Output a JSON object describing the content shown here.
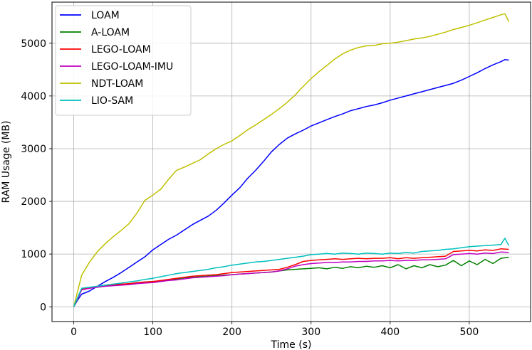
{
  "chart_data": {
    "type": "line",
    "title": "",
    "xlabel": "Time (s)",
    "ylabel": "RAM Usage (MB)",
    "xlim": [
      -27.5,
      577.5
    ],
    "ylim": [
      -280,
      5780
    ],
    "xticks": [
      0,
      100,
      200,
      300,
      400,
      500
    ],
    "yticks": [
      0,
      1000,
      2000,
      3000,
      4000,
      5000
    ],
    "grid": true,
    "legend_position": "top-left",
    "series": [
      {
        "name": "LOAM",
        "color": "#0000ff",
        "x": [
          0,
          5,
          10,
          20,
          30,
          40,
          50,
          60,
          70,
          80,
          90,
          100,
          110,
          120,
          130,
          140,
          150,
          160,
          170,
          180,
          190,
          200,
          210,
          220,
          230,
          240,
          250,
          260,
          270,
          280,
          290,
          300,
          310,
          320,
          330,
          340,
          350,
          360,
          370,
          380,
          390,
          400,
          410,
          420,
          430,
          440,
          450,
          460,
          470,
          480,
          490,
          500,
          510,
          520,
          530,
          540,
          545,
          550
        ],
        "y": [
          0,
          130,
          240,
          300,
          390,
          480,
          560,
          650,
          750,
          850,
          950,
          1080,
          1180,
          1280,
          1360,
          1460,
          1560,
          1640,
          1720,
          1830,
          1970,
          2120,
          2260,
          2440,
          2590,
          2760,
          2940,
          3080,
          3200,
          3280,
          3350,
          3430,
          3490,
          3550,
          3610,
          3660,
          3720,
          3760,
          3800,
          3830,
          3870,
          3920,
          3960,
          4000,
          4040,
          4080,
          4120,
          4160,
          4200,
          4240,
          4300,
          4370,
          4440,
          4520,
          4590,
          4650,
          4690,
          4680
        ]
      },
      {
        "name": "A-LOAM",
        "color": "#008000",
        "x": [
          0,
          5,
          10,
          20,
          30,
          40,
          50,
          60,
          70,
          80,
          90,
          100,
          110,
          120,
          130,
          140,
          150,
          160,
          170,
          180,
          190,
          200,
          210,
          220,
          230,
          240,
          250,
          260,
          270,
          280,
          290,
          300,
          310,
          320,
          330,
          340,
          350,
          360,
          370,
          380,
          390,
          400,
          410,
          420,
          430,
          440,
          450,
          460,
          470,
          480,
          490,
          500,
          510,
          520,
          530,
          540,
          550
        ],
        "y": [
          0,
          150,
          330,
          360,
          380,
          400,
          410,
          420,
          440,
          450,
          470,
          480,
          490,
          510,
          530,
          550,
          560,
          570,
          580,
          590,
          600,
          610,
          620,
          630,
          640,
          650,
          660,
          680,
          700,
          710,
          720,
          730,
          740,
          720,
          750,
          730,
          760,
          740,
          770,
          750,
          780,
          740,
          800,
          720,
          780,
          740,
          800,
          760,
          790,
          880,
          780,
          870,
          800,
          900,
          820,
          920,
          940
        ]
      },
      {
        "name": "LEGO-LOAM",
        "color": "#ff0000",
        "x": [
          0,
          5,
          10,
          20,
          30,
          40,
          50,
          60,
          70,
          80,
          90,
          100,
          110,
          120,
          130,
          140,
          150,
          160,
          170,
          180,
          190,
          200,
          210,
          220,
          230,
          240,
          250,
          260,
          270,
          280,
          290,
          300,
          310,
          320,
          330,
          340,
          350,
          360,
          370,
          380,
          390,
          400,
          410,
          420,
          430,
          440,
          450,
          460,
          470,
          480,
          490,
          500,
          510,
          520,
          530,
          540,
          550
        ],
        "y": [
          0,
          170,
          330,
          360,
          390,
          410,
          420,
          430,
          440,
          460,
          470,
          480,
          500,
          520,
          540,
          560,
          580,
          590,
          600,
          610,
          630,
          650,
          660,
          670,
          680,
          690,
          700,
          710,
          750,
          800,
          860,
          880,
          890,
          900,
          910,
          900,
          910,
          920,
          910,
          920,
          920,
          930,
          910,
          930,
          920,
          930,
          940,
          950,
          960,
          1050,
          1060,
          1070,
          1060,
          1080,
          1070,
          1100,
          1090
        ]
      },
      {
        "name": "LEGO-LOAM-IMU",
        "color": "#c000c0",
        "x": [
          0,
          5,
          10,
          20,
          30,
          40,
          50,
          60,
          70,
          80,
          90,
          100,
          110,
          120,
          130,
          140,
          150,
          160,
          170,
          180,
          190,
          200,
          210,
          220,
          230,
          240,
          250,
          260,
          270,
          280,
          290,
          300,
          310,
          320,
          330,
          340,
          350,
          360,
          370,
          380,
          390,
          400,
          410,
          420,
          430,
          440,
          450,
          460,
          470,
          480,
          490,
          500,
          510,
          520,
          530,
          540,
          550
        ],
        "y": [
          0,
          160,
          320,
          350,
          370,
          390,
          400,
          410,
          420,
          440,
          450,
          460,
          480,
          500,
          510,
          530,
          550,
          560,
          570,
          580,
          590,
          610,
          620,
          630,
          640,
          650,
          660,
          680,
          720,
          770,
          800,
          820,
          830,
          840,
          840,
          850,
          850,
          860,
          860,
          870,
          870,
          880,
          870,
          880,
          880,
          890,
          890,
          900,
          910,
          990,
          1000,
          1010,
          1000,
          1020,
          1010,
          1040,
          1030
        ]
      },
      {
        "name": "NDT-LOAM",
        "color": "#bfbf00",
        "x": [
          0,
          5,
          10,
          20,
          30,
          40,
          50,
          60,
          70,
          80,
          90,
          100,
          110,
          120,
          130,
          140,
          150,
          160,
          170,
          180,
          190,
          200,
          210,
          220,
          230,
          240,
          250,
          260,
          270,
          280,
          290,
          300,
          310,
          320,
          330,
          340,
          350,
          360,
          370,
          380,
          390,
          400,
          410,
          420,
          430,
          440,
          450,
          460,
          470,
          480,
          490,
          500,
          510,
          520,
          530,
          540,
          545,
          550
        ],
        "y": [
          0,
          300,
          600,
          850,
          1050,
          1200,
          1330,
          1450,
          1580,
          1780,
          2020,
          2120,
          2230,
          2420,
          2590,
          2650,
          2720,
          2790,
          2900,
          3000,
          3080,
          3150,
          3250,
          3360,
          3450,
          3550,
          3650,
          3760,
          3880,
          4020,
          4180,
          4330,
          4460,
          4580,
          4700,
          4800,
          4870,
          4920,
          4950,
          4960,
          4990,
          5000,
          5020,
          5050,
          5080,
          5100,
          5130,
          5170,
          5210,
          5260,
          5300,
          5340,
          5390,
          5440,
          5490,
          5540,
          5560,
          5410
        ]
      },
      {
        "name": "LIO-SAM",
        "color": "#00bfbf",
        "x": [
          0,
          5,
          10,
          20,
          30,
          40,
          50,
          60,
          70,
          80,
          90,
          100,
          110,
          120,
          130,
          140,
          150,
          160,
          170,
          180,
          190,
          200,
          210,
          220,
          230,
          240,
          250,
          260,
          270,
          280,
          290,
          300,
          310,
          320,
          330,
          340,
          350,
          360,
          370,
          380,
          390,
          400,
          410,
          420,
          430,
          440,
          450,
          460,
          470,
          480,
          490,
          500,
          510,
          520,
          530,
          540,
          545,
          550
        ],
        "y": [
          0,
          180,
          350,
          370,
          390,
          410,
          430,
          450,
          470,
          490,
          520,
          540,
          570,
          600,
          630,
          650,
          670,
          690,
          710,
          740,
          760,
          790,
          810,
          830,
          850,
          860,
          880,
          900,
          920,
          940,
          960,
          990,
          1000,
          1010,
          1000,
          1020,
          1010,
          1000,
          1020,
          1010,
          1000,
          1020,
          1010,
          1030,
          1020,
          1050,
          1060,
          1070,
          1090,
          1100,
          1120,
          1140,
          1150,
          1160,
          1170,
          1180,
          1300,
          1160
        ]
      }
    ]
  }
}
